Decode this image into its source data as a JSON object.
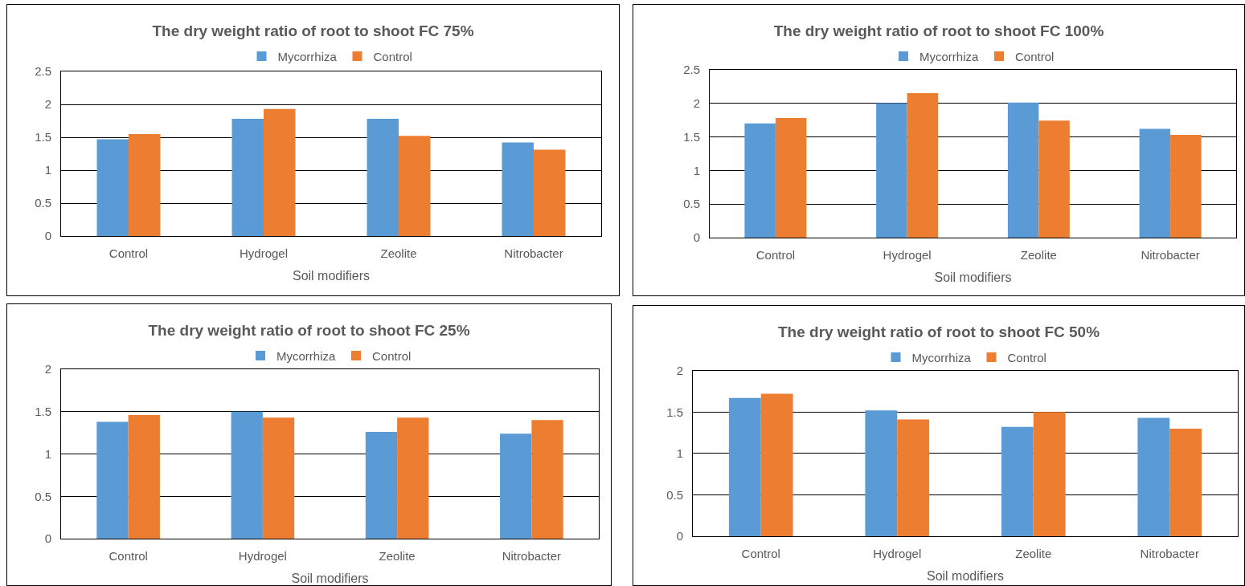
{
  "chart_data": [
    {
      "type": "bar",
      "title": "The dry weight ratio of root to shoot FC 75%",
      "xlabel": "Soil modifiers",
      "categories": [
        "Control",
        "Hydrogel",
        "Zeolite",
        "Nitrobacter"
      ],
      "series": [
        {
          "name": "Mycorrhiza",
          "color": "#5b9bd5",
          "values": [
            1.47,
            1.78,
            1.78,
            1.42
          ]
        },
        {
          "name": "Control",
          "color": "#ed7d31",
          "values": [
            1.55,
            1.93,
            1.52,
            1.31
          ]
        }
      ],
      "ylim": [
        0,
        2.5
      ],
      "yticks": [
        0,
        0.5,
        1,
        1.5,
        2,
        2.5
      ],
      "grid": "y",
      "legend": "top"
    },
    {
      "type": "bar",
      "title": "The dry weight ratio of root to shoot FC 100%",
      "xlabel": "Soil modifiers",
      "categories": [
        "Control",
        "Hydrogel",
        "Zeolite",
        "Nitrobacter"
      ],
      "series": [
        {
          "name": "Mycorrhiza",
          "color": "#5b9bd5",
          "values": [
            1.7,
            2.0,
            2.01,
            1.62
          ]
        },
        {
          "name": "Control",
          "color": "#ed7d31",
          "values": [
            1.78,
            2.15,
            1.74,
            1.53
          ]
        }
      ],
      "ylim": [
        0,
        2.5
      ],
      "yticks": [
        0,
        0.5,
        1,
        1.5,
        2,
        2.5
      ],
      "grid": "y",
      "legend": "top"
    },
    {
      "type": "bar",
      "title": "The dry weight ratio of root to shoot FC 25%",
      "xlabel": "Soil modifiers",
      "categories": [
        "Control",
        "Hydrogel",
        "Zeolite",
        "Nitrobacter"
      ],
      "series": [
        {
          "name": "Mycorrhiza",
          "color": "#5b9bd5",
          "values": [
            1.38,
            1.5,
            1.26,
            1.24
          ]
        },
        {
          "name": "Control",
          "color": "#ed7d31",
          "values": [
            1.46,
            1.43,
            1.43,
            1.4
          ]
        }
      ],
      "ylim": [
        0,
        2
      ],
      "yticks": [
        0,
        0.5,
        1,
        1.5,
        2
      ],
      "grid": "y",
      "legend": "top"
    },
    {
      "type": "bar",
      "title": "The dry weight ratio of root to shoot FC 50%",
      "xlabel": "Soil modifiers",
      "categories": [
        "Control",
        "Hydrogel",
        "Zeolite",
        "Nitrobacter"
      ],
      "series": [
        {
          "name": "Mycorrhiza",
          "color": "#5b9bd5",
          "values": [
            1.67,
            1.52,
            1.32,
            1.43
          ]
        },
        {
          "name": "Control",
          "color": "#ed7d31",
          "values": [
            1.72,
            1.41,
            1.5,
            1.3
          ]
        }
      ],
      "ylim": [
        0,
        2
      ],
      "yticks": [
        0,
        0.5,
        1,
        1.5,
        2
      ],
      "grid": "y",
      "legend": "top"
    }
  ]
}
